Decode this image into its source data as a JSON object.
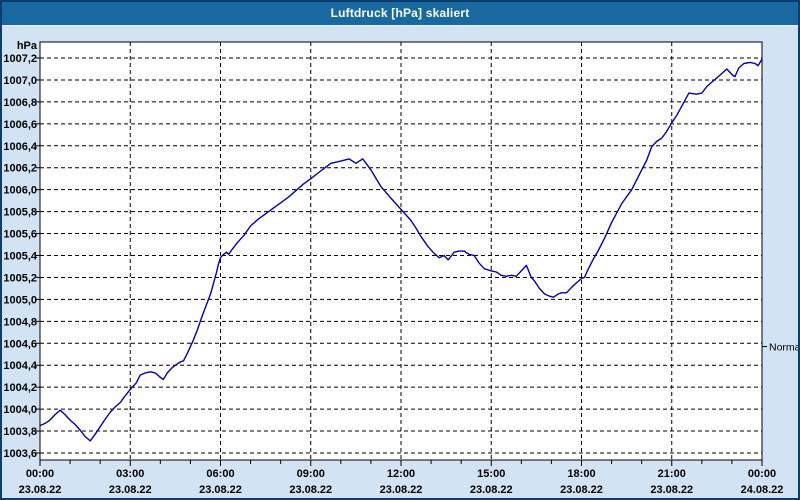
{
  "window": {
    "title": "Luftdruck [hPa] skaliert",
    "colors": {
      "titlebar_bg": "#17699f",
      "titlebar_text": "#ffffff",
      "window_bg": "#d2e3f4",
      "window_border": "#0d3c6e",
      "plot_bg": "#ffffff",
      "plot_border": "#000000",
      "grid": "#000000",
      "label_text": "#000000",
      "line": "#0202a8"
    }
  },
  "chart_data": {
    "type": "line",
    "title": "Luftdruck [hPa] skaliert",
    "grid": true,
    "legend_position": "none",
    "y_axis": {
      "unit_label": "hPa",
      "min": 1003.6,
      "max": 1007.2,
      "step": 0.2,
      "tick_labels": [
        "1003,6",
        "1003,8",
        "1004,0",
        "1004,2",
        "1004,4",
        "1004,6",
        "1004,8",
        "1005,0",
        "1005,2",
        "1005,4",
        "1005,6",
        "1005,8",
        "1006,0",
        "1006,2",
        "1006,4",
        "1006,6",
        "1006,8",
        "1007,0",
        "1007,2"
      ]
    },
    "x_axis": {
      "range_hours": [
        0,
        24
      ],
      "major_step_hours": 3,
      "minor_step_hours": 1,
      "ticks": [
        {
          "time": "00:00",
          "date": "23.08.22"
        },
        {
          "time": "03:00",
          "date": "23.08.22"
        },
        {
          "time": "06:00",
          "date": "23.08.22"
        },
        {
          "time": "09:00",
          "date": "23.08.22"
        },
        {
          "time": "12:00",
          "date": "23.08.22"
        },
        {
          "time": "15:00",
          "date": "23.08.22"
        },
        {
          "time": "18:00",
          "date": "23.08.22"
        },
        {
          "time": "21:00",
          "date": "23.08.22"
        },
        {
          "time": "00:00",
          "date": "24.08.22"
        }
      ]
    },
    "annotations": [
      {
        "label": "Normal",
        "value": 1004.57
      }
    ],
    "series": [
      {
        "name": "Luftdruck",
        "color": "#0202a8",
        "points": [
          [
            0,
            1003.85
          ],
          [
            0.17,
            1003.87
          ],
          [
            0.33,
            1003.9
          ],
          [
            0.5,
            1003.95
          ],
          [
            0.67,
            1003.99
          ],
          [
            0.83,
            1003.95
          ],
          [
            1,
            1003.9
          ],
          [
            1.17,
            1003.86
          ],
          [
            1.33,
            1003.81
          ],
          [
            1.5,
            1003.75
          ],
          [
            1.67,
            1003.71
          ],
          [
            1.83,
            1003.77
          ],
          [
            2,
            1003.84
          ],
          [
            2.17,
            1003.91
          ],
          [
            2.33,
            1003.97
          ],
          [
            2.5,
            1004.02
          ],
          [
            2.67,
            1004.06
          ],
          [
            2.83,
            1004.12
          ],
          [
            3,
            1004.18
          ],
          [
            3.2,
            1004.24
          ],
          [
            3.33,
            1004.31
          ],
          [
            3.5,
            1004.33
          ],
          [
            3.67,
            1004.34
          ],
          [
            3.83,
            1004.33
          ],
          [
            4,
            1004.29
          ],
          [
            4.1,
            1004.27
          ],
          [
            4.23,
            1004.33
          ],
          [
            4.4,
            1004.38
          ],
          [
            4.5,
            1004.4
          ],
          [
            4.67,
            1004.43
          ],
          [
            4.77,
            1004.44
          ],
          [
            4.9,
            1004.51
          ],
          [
            5,
            1004.57
          ],
          [
            5.1,
            1004.63
          ],
          [
            5.23,
            1004.72
          ],
          [
            5.33,
            1004.8
          ],
          [
            5.5,
            1004.93
          ],
          [
            5.67,
            1005.05
          ],
          [
            5.77,
            1005.15
          ],
          [
            5.87,
            1005.25
          ],
          [
            5.93,
            1005.32
          ],
          [
            6,
            1005.38
          ],
          [
            6.1,
            1005.41
          ],
          [
            6.2,
            1005.43
          ],
          [
            6.27,
            1005.41
          ],
          [
            6.4,
            1005.46
          ],
          [
            6.57,
            1005.52
          ],
          [
            6.77,
            1005.58
          ],
          [
            7,
            1005.67
          ],
          [
            7.25,
            1005.73
          ],
          [
            7.5,
            1005.78
          ],
          [
            7.75,
            1005.83
          ],
          [
            8,
            1005.88
          ],
          [
            8.25,
            1005.93
          ],
          [
            8.5,
            1005.99
          ],
          [
            8.75,
            1006.05
          ],
          [
            9,
            1006.1
          ],
          [
            9.33,
            1006.17
          ],
          [
            9.67,
            1006.24
          ],
          [
            10,
            1006.26
          ],
          [
            10.27,
            1006.28
          ],
          [
            10.5,
            1006.24
          ],
          [
            10.73,
            1006.28
          ],
          [
            11,
            1006.18
          ],
          [
            11.33,
            1006.03
          ],
          [
            11.67,
            1005.92
          ],
          [
            12,
            1005.82
          ],
          [
            12.33,
            1005.72
          ],
          [
            12.5,
            1005.65
          ],
          [
            12.67,
            1005.57
          ],
          [
            12.9,
            1005.48
          ],
          [
            13.1,
            1005.42
          ],
          [
            13.27,
            1005.38
          ],
          [
            13.43,
            1005.4
          ],
          [
            13.57,
            1005.36
          ],
          [
            13.77,
            1005.43
          ],
          [
            13.93,
            1005.44
          ],
          [
            14.1,
            1005.44
          ],
          [
            14.27,
            1005.41
          ],
          [
            14.43,
            1005.4
          ],
          [
            14.6,
            1005.33
          ],
          [
            14.77,
            1005.28
          ],
          [
            15,
            1005.26
          ],
          [
            15.17,
            1005.25
          ],
          [
            15.33,
            1005.22
          ],
          [
            15.5,
            1005.21
          ],
          [
            15.67,
            1005.22
          ],
          [
            15.83,
            1005.21
          ],
          [
            16,
            1005.26
          ],
          [
            16.17,
            1005.31
          ],
          [
            16.33,
            1005.2
          ],
          [
            16.43,
            1005.17
          ],
          [
            16.6,
            1005.1
          ],
          [
            16.77,
            1005.05
          ],
          [
            16.93,
            1005.03
          ],
          [
            17.07,
            1005.02
          ],
          [
            17.23,
            1005.05
          ],
          [
            17.33,
            1005.06
          ],
          [
            17.5,
            1005.06
          ],
          [
            17.67,
            1005.11
          ],
          [
            17.83,
            1005.15
          ],
          [
            18,
            1005.19
          ],
          [
            18.1,
            1005.2
          ],
          [
            18.23,
            1005.28
          ],
          [
            18.4,
            1005.37
          ],
          [
            18.57,
            1005.45
          ],
          [
            18.77,
            1005.56
          ],
          [
            19,
            1005.7
          ],
          [
            19.33,
            1005.87
          ],
          [
            19.67,
            1006
          ],
          [
            20,
            1006.18
          ],
          [
            20.17,
            1006.27
          ],
          [
            20.33,
            1006.39
          ],
          [
            20.5,
            1006.44
          ],
          [
            20.67,
            1006.47
          ],
          [
            20.83,
            1006.53
          ],
          [
            21,
            1006.61
          ],
          [
            21.17,
            1006.68
          ],
          [
            21.33,
            1006.76
          ],
          [
            21.47,
            1006.83
          ],
          [
            21.57,
            1006.88
          ],
          [
            21.83,
            1006.87
          ],
          [
            22,
            1006.88
          ],
          [
            22.17,
            1006.94
          ],
          [
            22.33,
            1006.98
          ],
          [
            22.5,
            1007.02
          ],
          [
            22.67,
            1007.06
          ],
          [
            22.83,
            1007.1
          ],
          [
            23,
            1007.05
          ],
          [
            23.1,
            1007.03
          ],
          [
            23.23,
            1007.11
          ],
          [
            23.4,
            1007.15
          ],
          [
            23.6,
            1007.16
          ],
          [
            23.77,
            1007.15
          ],
          [
            23.87,
            1007.13
          ],
          [
            24,
            1007.19
          ]
        ]
      }
    ]
  }
}
